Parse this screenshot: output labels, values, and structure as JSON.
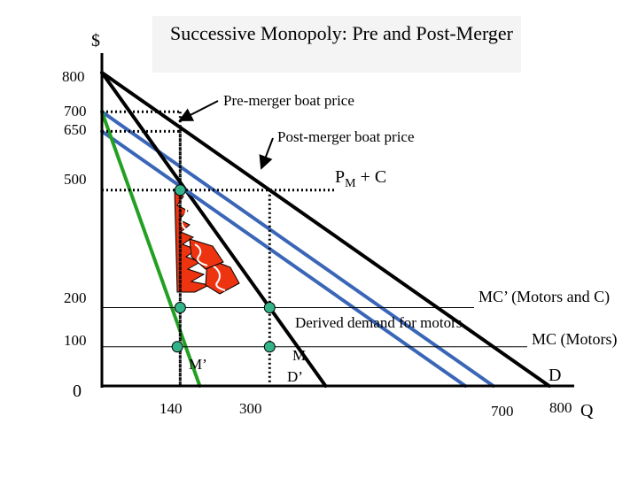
{
  "chart_data": {
    "type": "line",
    "title": "Successive Monopoly: Pre and Post-Merger",
    "ylabel": "$",
    "xlabel": "Q",
    "xlim": [
      0,
      800
    ],
    "ylim": [
      0,
      800
    ],
    "y_ticks": [
      "800",
      "700",
      "650",
      "500",
      "200",
      "100",
      "0"
    ],
    "x_ticks": [
      "140",
      "300",
      "700",
      "800"
    ],
    "series": [
      {
        "name": "D",
        "color": "#000000",
        "points": [
          [
            0,
            800
          ],
          [
            800,
            0
          ]
        ]
      },
      {
        "name": "D’",
        "color": "#3a66b8",
        "points": [
          [
            0,
            700
          ],
          [
            700,
            0
          ]
        ]
      },
      {
        "name": "M",
        "color": "#000000",
        "points": [
          [
            0,
            800
          ],
          [
            400,
            0
          ]
        ]
      },
      {
        "name": "Derived demand for motors",
        "color": "#3a66b8",
        "points": [
          [
            0,
            650
          ],
          [
            650,
            0
          ]
        ]
      },
      {
        "name": "M’",
        "color": "#22a022",
        "points": [
          [
            0,
            700
          ],
          [
            175,
            0
          ]
        ]
      }
    ],
    "hlines": [
      {
        "name": "MC’ (Motors and C)",
        "y": 200
      },
      {
        "name": "MC (Motors)",
        "y": 100
      }
    ],
    "price_levels": [
      {
        "y": 700,
        "x": 140
      },
      {
        "y": 650,
        "x": 140
      },
      {
        "y": 500,
        "x": 300
      }
    ],
    "markers": [
      [
        140,
        500
      ],
      [
        140,
        200
      ],
      [
        300,
        200
      ],
      [
        300,
        100
      ],
      [
        135,
        100
      ]
    ],
    "annotations": {
      "pre_merger": "Pre-merger boat price",
      "post_merger": "Post-merger boat price",
      "pm_c_main": "P",
      "pm_c_sub": "M",
      "pm_c_tail": " + C",
      "mc_prime": "MC’ (Motors and C)",
      "derived": "Derived demand for motors",
      "mc": "MC (Motors)",
      "m_prime": "M’",
      "m": "M",
      "d_prime": "D’",
      "d": "D"
    },
    "colors": {
      "marker": "#33b38a",
      "hatch": "#ee3311",
      "blue": "#3a66b8",
      "green": "#22a022"
    }
  }
}
